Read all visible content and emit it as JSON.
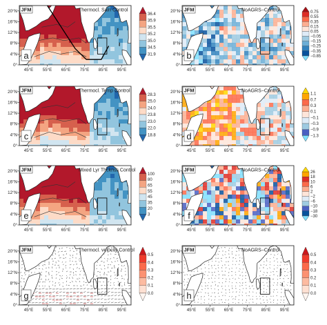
{
  "chart_data": [
    {
      "id": "a",
      "type": "heatmap",
      "season": "JFM",
      "title": "Thermocl. Saln Control",
      "panel_label": "a",
      "colorbar": {
        "ticks": [
          "36.4",
          "35.9",
          "35.5",
          "35.2",
          "35.0",
          "34.5",
          "31.9"
        ],
        "colors": [
          "#b2182b",
          "#d6604d",
          "#f4a582",
          "#fddbc7",
          "#d1e5f0",
          "#92c5de",
          "#4393c3",
          "#2166ac"
        ]
      },
      "xticks": [
        "45°E",
        "55°E",
        "65°E",
        "75°E",
        "85°E",
        "95°E"
      ],
      "yticks": [
        "20°N",
        "16°N",
        "12°N",
        "8°N",
        "4°N",
        "0°"
      ],
      "has_section_line": true,
      "pattern": "gradient"
    },
    {
      "id": "b",
      "type": "heatmap",
      "season": "JFM",
      "title": "NoAGRS−Control",
      "panel_label": "b",
      "colorbar": {
        "ticks": [
          "0.75",
          "0.55",
          "0.35",
          "0.15",
          "0.05",
          "−0.05",
          "−0.15",
          "−0.25",
          "−0.35",
          "−0.85"
        ],
        "colors": [
          "#a50f15",
          "#de2d26",
          "#fb6a4a",
          "#fcae91",
          "#fee5d9",
          "#deebf7",
          "#9ecae1",
          "#6baed6",
          "#3182bd",
          "#08519c",
          "#7fdfff"
        ]
      },
      "xticks": [
        "45°E",
        "55°E",
        "65°E",
        "75°E",
        "85°E",
        "95°E"
      ],
      "yticks": [
        "20°N",
        "16°N",
        "12°N",
        "8°N",
        "4°N",
        "0°"
      ],
      "pattern": "noise"
    },
    {
      "id": "c",
      "type": "heatmap",
      "season": "JFM",
      "title": "Thermocl. Temp Control",
      "panel_label": "c",
      "colorbar": {
        "ticks": [
          "28.3",
          "25.0",
          "24.0",
          "23.8",
          "23.0",
          "22.0",
          "18.8"
        ],
        "colors": [
          "#b2182b",
          "#d6604d",
          "#f4a582",
          "#fddbc7",
          "#d1e5f0",
          "#92c5de",
          "#4393c3",
          "#2166ac"
        ]
      },
      "xticks": [
        "45°E",
        "55°E",
        "65°E",
        "75°E",
        "85°E",
        "95°E"
      ],
      "yticks": [
        "20°N",
        "16°N",
        "12°N",
        "8°N",
        "4°N",
        "0°"
      ],
      "pattern": "gradient"
    },
    {
      "id": "d",
      "type": "heatmap",
      "season": "JFM",
      "title": "NoAGRS−Control",
      "panel_label": "d",
      "colorbar": {
        "ticks": [
          "1.1",
          "0.7",
          "0.3",
          "0.1",
          "−0.1",
          "−0.3",
          "−0.9",
          "−1.3"
        ],
        "colors": [
          "#ffd700",
          "#ffa500",
          "#fb6a4a",
          "#fcae91",
          "#fee5d9",
          "#deebf7",
          "#9ecae1",
          "#4a5fc1",
          "#7fdfff"
        ]
      },
      "xticks": [
        "45°E",
        "55°E",
        "65°E",
        "75°E",
        "85°E",
        "95°E"
      ],
      "yticks": [
        "20°N",
        "16°N",
        "12°N",
        "8°N",
        "4°N",
        "0°"
      ],
      "pattern": "noise"
    },
    {
      "id": "e",
      "type": "heatmap",
      "season": "JFM",
      "title": "Mixed Lyr Thcknss Control",
      "panel_label": "e",
      "colorbar": {
        "ticks": [
          "100",
          "80",
          "65",
          "55",
          "45",
          "35",
          "20",
          "3"
        ],
        "colors": [
          "#b2182b",
          "#d6604d",
          "#f4a582",
          "#fddbc7",
          "#d1e5f0",
          "#92c5de",
          "#4393c3",
          "#2166ac"
        ]
      },
      "xticks": [
        "45°E",
        "55°E",
        "65°E",
        "75°E",
        "85°E",
        "95°E"
      ],
      "yticks": [
        "20°N",
        "16°N",
        "12°N",
        "8°N",
        "4°N",
        "0°"
      ],
      "pattern": "gradient"
    },
    {
      "id": "f",
      "type": "heatmap",
      "season": "JFM",
      "title": "NoAGRS−Control",
      "panel_label": "f",
      "colorbar": {
        "ticks": [
          "26",
          "18",
          "10",
          "6",
          "2",
          "−2",
          "−6",
          "−10",
          "−18",
          "−30"
        ],
        "colors": [
          "#ffd700",
          "#ffa500",
          "#de2d26",
          "#fb6a4a",
          "#fcae91",
          "#fee5d9",
          "#deebf7",
          "#9ecae1",
          "#4a5fc1",
          "#08519c",
          "#7fdfff"
        ]
      },
      "xticks": [
        "45°E",
        "55°E",
        "65°E",
        "75°E",
        "85°E",
        "95°E"
      ],
      "yticks": [
        "20°N",
        "16°N",
        "12°N",
        "8°N",
        "4°N",
        "0°"
      ],
      "pattern": "noise_strong"
    },
    {
      "id": "g",
      "type": "vector",
      "season": "JFM",
      "title": "Thermocl. velocity Control",
      "panel_label": "g",
      "colorbar": {
        "ticks": [
          "0.5",
          "0.4",
          "0.3",
          "0.2",
          "0.1",
          "0.0"
        ],
        "colors": [
          "#cb181d",
          "#ef3b2c",
          "#fb6a4a",
          "#fc9272",
          "#fcbba1",
          "#fee0d2",
          "#fff5f0"
        ]
      },
      "xticks": [
        "45°E",
        "55°E",
        "65°E",
        "75°E",
        "85°E",
        "95°E"
      ],
      "yticks": [
        "20°N",
        "16°N",
        "12°N",
        "8°N",
        "4°N",
        "0°"
      ],
      "pattern": "vectors_control"
    },
    {
      "id": "h",
      "type": "vector",
      "season": "JFM",
      "title": "NoAGRS−Control",
      "panel_label": "h",
      "colorbar": {
        "ticks": [
          "0.5",
          "0.4",
          "0.3",
          "0.2",
          "0.1",
          "0.0"
        ],
        "colors": [
          "#cb181d",
          "#ef3b2c",
          "#fb6a4a",
          "#fc9272",
          "#fcbba1",
          "#fee0d2",
          "#fff5f0"
        ]
      },
      "xticks": [
        "45°E",
        "55°E",
        "65°E",
        "75°E",
        "85°E",
        "95°E"
      ],
      "yticks": [
        "20°N",
        "16°N",
        "12°N",
        "8°N",
        "4°N",
        "0°"
      ],
      "pattern": "vectors_diff"
    }
  ]
}
